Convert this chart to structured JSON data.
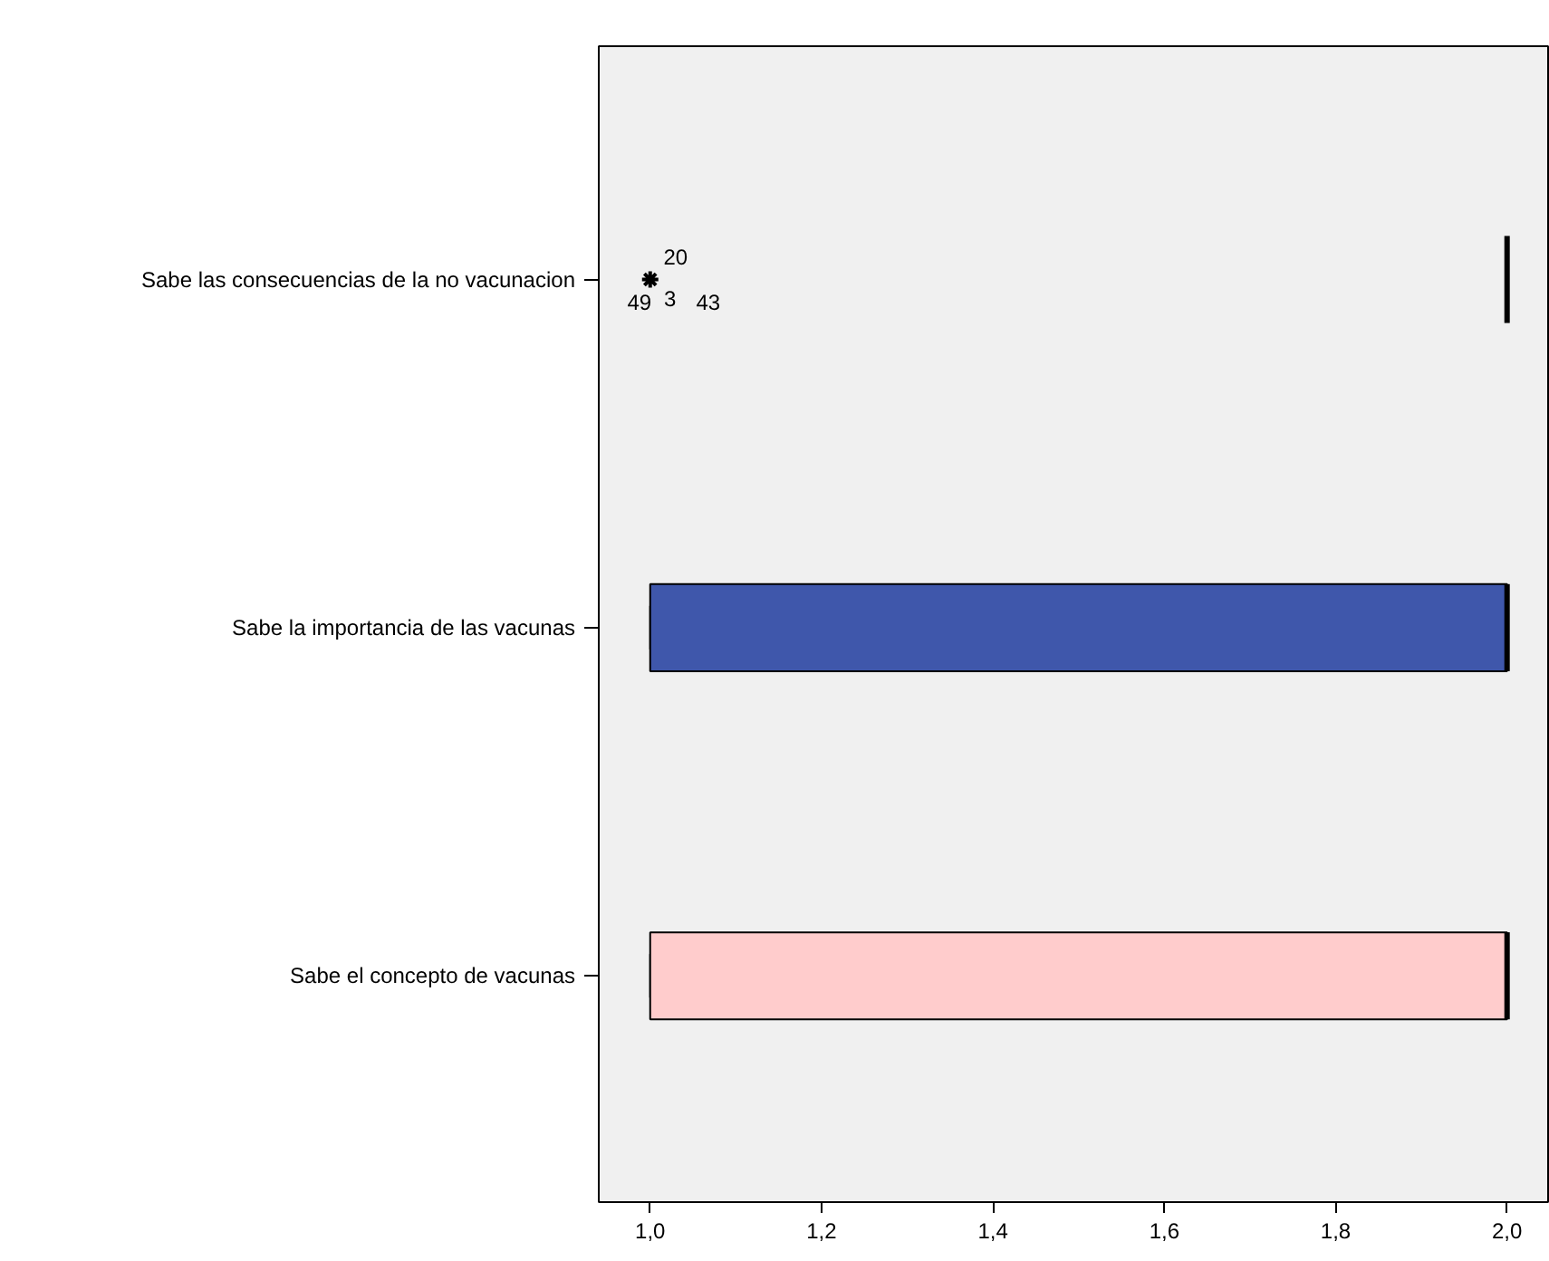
{
  "chart_data": {
    "type": "box",
    "orientation": "horizontal",
    "categories": [
      "Sabe las consecuencias de la no vacunacion",
      "Sabe la importancia de las vacunas",
      "Sabe el concepto de vacunas"
    ],
    "boxes": [
      {
        "low": 2.0,
        "q1": 2.0,
        "median": 2.0,
        "q3": 2.0,
        "high": 2.0,
        "outliers": [
          1.0
        ]
      },
      {
        "low": 1.0,
        "q1": 1.0,
        "median": 2.0,
        "q3": 2.0,
        "high": 2.0
      },
      {
        "low": 1.0,
        "q1": 1.0,
        "median": 2.0,
        "q3": 2.0,
        "high": 2.0
      }
    ],
    "colors": [
      null,
      "#3f57ab",
      "#ffcccc"
    ],
    "xlim": [
      0.94,
      2.05
    ],
    "xticks": [
      {
        "value": 1.0,
        "label": "1,0"
      },
      {
        "value": 1.2,
        "label": "1,2"
      },
      {
        "value": 1.4,
        "label": "1,4"
      },
      {
        "value": 1.6,
        "label": "1,6"
      },
      {
        "value": 1.8,
        "label": "1,8"
      },
      {
        "value": 2.0,
        "label": "2,0"
      }
    ],
    "annotations": [
      "20",
      "49",
      "3",
      "43"
    ],
    "grid": false
  }
}
